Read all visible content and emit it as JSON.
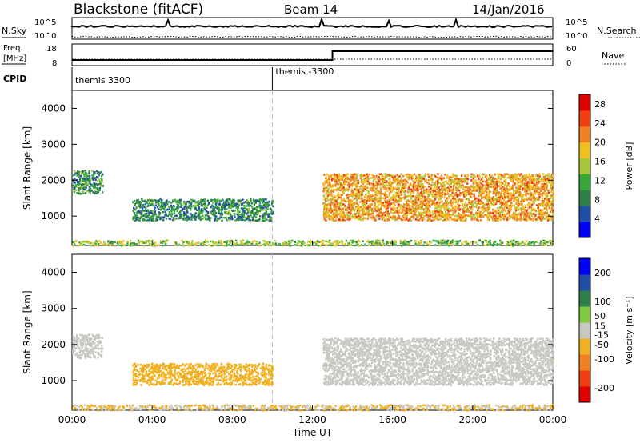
{
  "header": {
    "station": "Blackstone (fitACF)",
    "beam": "Beam 14",
    "date": "14/Jan/2016"
  },
  "top_panels": {
    "noise_left_label": "N.Sky",
    "noise_right_label": "N.Search",
    "noise_ticks": [
      "10^5",
      "10^0"
    ],
    "freq_label_1": "Freq.",
    "freq_label_2": "[MHz]",
    "freq_ticks": [
      "18",
      "8"
    ],
    "nave_label": "Nave",
    "nave_ticks": [
      "60",
      "0"
    ],
    "cpid_label": "CPID",
    "cpid_segments": [
      {
        "label": "themis 3300",
        "start_hour": 0
      },
      {
        "label": "themis -3300",
        "start_hour": 10
      }
    ]
  },
  "chart_data": [
    {
      "type": "heatmap",
      "title": "",
      "xlabel": "",
      "ylabel": "Slant Range [km]",
      "xlim": [
        0,
        24
      ],
      "ylim": [
        180,
        4500
      ],
      "ytick_labels": [
        "4000",
        "3000",
        "2000",
        "1000"
      ],
      "ytick_values": [
        4000,
        3000,
        2000,
        1000
      ],
      "colorbar": {
        "label": "Power [dB]",
        "tick_labels": [
          "28",
          "24",
          "20",
          "16",
          "12",
          "8",
          "4"
        ],
        "tick_values": [
          28,
          24,
          20,
          16,
          12,
          8,
          4
        ],
        "range": [
          0,
          30
        ],
        "colors": [
          "#0000ff",
          "#1f4fa8",
          "#2f7f4a",
          "#38a83a",
          "#a8c83a",
          "#f0c020",
          "#f08020",
          "#f04010",
          "#e00000"
        ]
      },
      "bands": [
        {
          "name": "ground scatter strip",
          "start_hour": 0,
          "end_hour": 24,
          "range_km": [
            200,
            350
          ],
          "typical_value": 14
        },
        {
          "name": "morning band",
          "start_hour": 0,
          "end_hour": 1.5,
          "range_km": [
            1650,
            2300
          ],
          "typical_value": 10
        },
        {
          "name": "dayside band",
          "start_hour": 3,
          "end_hour": 10,
          "range_km": [
            900,
            1500
          ],
          "typical_value": 9
        },
        {
          "name": "evening band",
          "start_hour": 12.5,
          "end_hour": 24,
          "range_km": [
            900,
            2200
          ],
          "typical_value": 20
        }
      ]
    },
    {
      "type": "heatmap",
      "title": "",
      "xlabel": "Time UT",
      "ylabel": "Slant Range [km]",
      "xlim": [
        0,
        24
      ],
      "xtick_labels": [
        "00:00",
        "04:00",
        "08:00",
        "12:00",
        "16:00",
        "20:00",
        "00:00"
      ],
      "xtick_values": [
        0,
        4,
        8,
        12,
        16,
        20,
        24
      ],
      "ylim": [
        180,
        4500
      ],
      "ytick_labels": [
        "4000",
        "3000",
        "2000",
        "1000"
      ],
      "ytick_values": [
        4000,
        3000,
        2000,
        1000
      ],
      "colorbar": {
        "label": "Velocity [m s⁻¹]",
        "tick_labels": [
          "200",
          "100",
          "50",
          "15",
          "-15",
          "-50",
          "-100",
          "-200"
        ],
        "tick_values": [
          200,
          100,
          50,
          15,
          -15,
          -50,
          -100,
          -200
        ],
        "range": [
          -250,
          250
        ],
        "colors": [
          "#e00000",
          "#f04010",
          "#f08020",
          "#f0b020",
          "#c8c8c0",
          "#80c840",
          "#2f7f4a",
          "#1f4fa8",
          "#0000ff"
        ]
      },
      "bands": [
        {
          "name": "ground scatter strip",
          "start_hour": 0,
          "end_hour": 24,
          "range_km": [
            200,
            350
          ],
          "typical_value": -30
        },
        {
          "name": "morning band",
          "start_hour": 0,
          "end_hour": 1.5,
          "range_km": [
            1650,
            2300
          ],
          "typical_value": 0
        },
        {
          "name": "dayside band",
          "start_hour": 3,
          "end_hour": 10,
          "range_km": [
            900,
            1500
          ],
          "typical_value": -60
        },
        {
          "name": "evening band",
          "start_hour": 12.5,
          "end_hour": 24,
          "range_km": [
            900,
            2200
          ],
          "typical_value": 0
        }
      ]
    }
  ]
}
